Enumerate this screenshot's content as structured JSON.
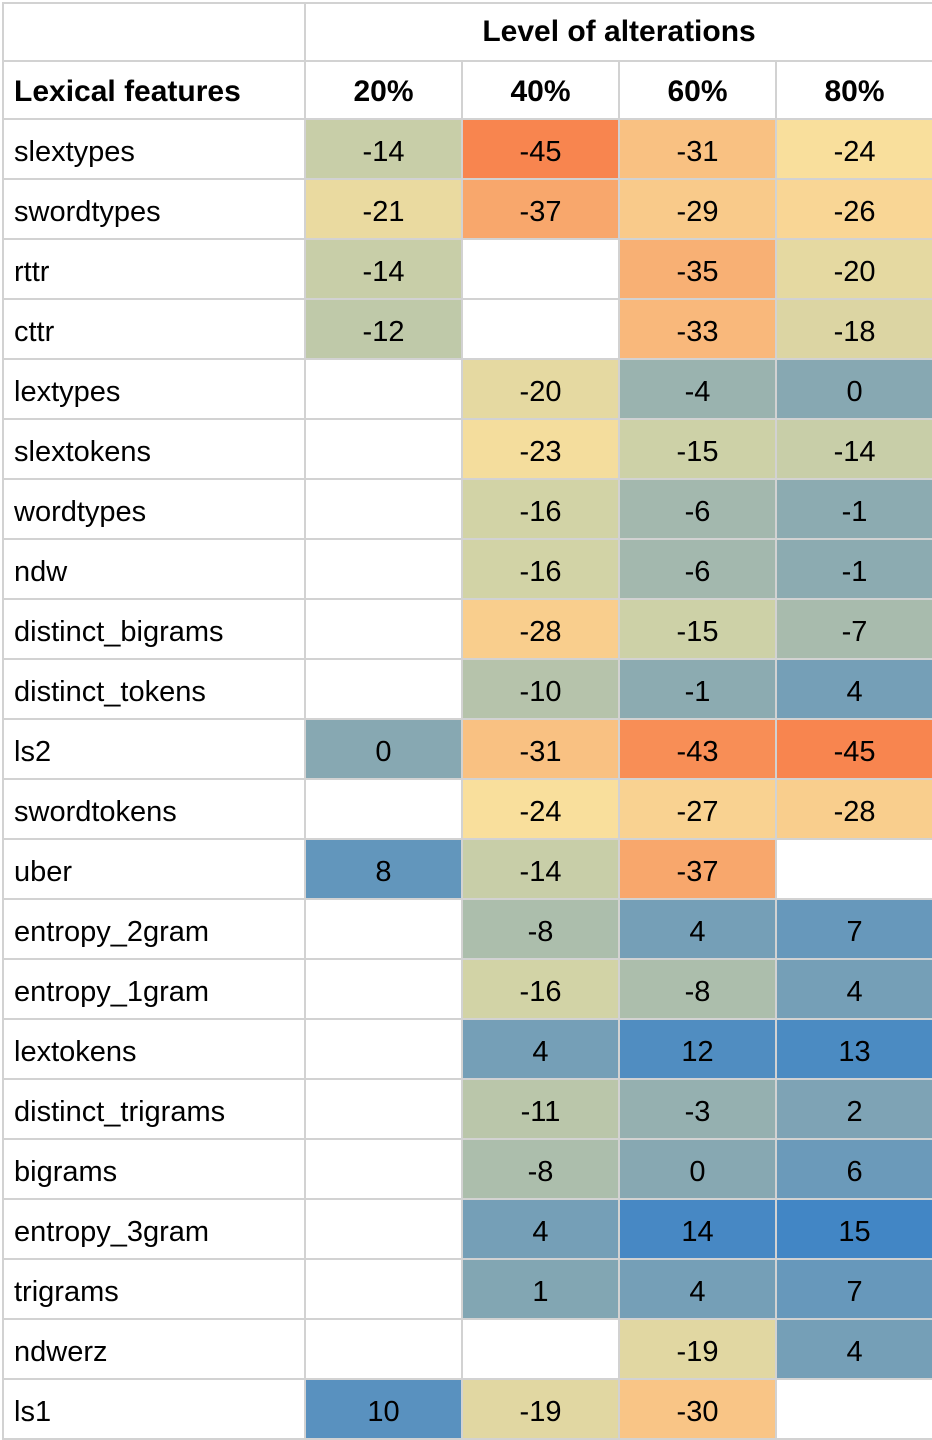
{
  "header": {
    "group_title": "Level of alterations",
    "row_label_header": "Lexical features",
    "columns": [
      "20%",
      "40%",
      "60%",
      "80%"
    ]
  },
  "colors": {
    "gridline": "#d2d2d2",
    "background": "#ffffff",
    "text": "#000000",
    "scale_min_orange": "#f8854f",
    "scale_mid_khaki": "#cdd1a7",
    "scale_max_blue": "#4286c5"
  },
  "chart_data": {
    "type": "heatmap",
    "title": "Level of alterations",
    "row_label_header": "Lexical features",
    "columns": [
      "20%",
      "40%",
      "60%",
      "80%"
    ],
    "value_range": [
      -45,
      15
    ],
    "legend_position": "none",
    "grid": true,
    "rows": [
      {
        "feature": "slextypes",
        "values": [
          -14,
          -45,
          -31,
          -24
        ],
        "colors": [
          "#c8cea8",
          "#f8854f",
          "#f9c182",
          "#f9df9c"
        ]
      },
      {
        "feature": "swordtypes",
        "values": [
          -21,
          -37,
          -29,
          -26
        ],
        "colors": [
          "#eadaa0",
          "#f8a76c",
          "#f9ca8a",
          "#f9d695"
        ]
      },
      {
        "feature": "rttr",
        "values": [
          -14,
          null,
          -35,
          -20
        ],
        "colors": [
          "#c8cea8",
          null,
          "#f8b074",
          "#e5d9a1"
        ]
      },
      {
        "feature": "cttr",
        "values": [
          -12,
          null,
          -33,
          -18
        ],
        "colors": [
          "#bfc9a9",
          null,
          "#f9b87b",
          "#dcd5a3"
        ]
      },
      {
        "feature": "lextypes",
        "values": [
          null,
          -20,
          -4,
          0
        ],
        "colors": [
          null,
          "#e5d9a1",
          "#9ab3af",
          "#87a8b2"
        ]
      },
      {
        "feature": "slextokens",
        "values": [
          null,
          -23,
          -15,
          -14
        ],
        "colors": [
          null,
          "#f4dd9d",
          "#cdd1a7",
          "#c8cea8"
        ]
      },
      {
        "feature": "wordtypes",
        "values": [
          null,
          -16,
          -6,
          -1
        ],
        "colors": [
          null,
          "#d2d3a6",
          "#a3b8ae",
          "#8cabb1"
        ]
      },
      {
        "feature": "ndw",
        "values": [
          null,
          -16,
          -6,
          -1
        ],
        "colors": [
          null,
          "#d2d3a6",
          "#a3b8ae",
          "#8cabb1"
        ]
      },
      {
        "feature": "distinct_bigrams",
        "values": [
          null,
          -28,
          -15,
          -7
        ],
        "colors": [
          null,
          "#f9ce8d",
          "#cdd1a7",
          "#a8bbad"
        ]
      },
      {
        "feature": "distinct_tokens",
        "values": [
          null,
          -10,
          -1,
          4
        ],
        "colors": [
          null,
          "#b6c3ab",
          "#8cabb1",
          "#759fb7"
        ]
      },
      {
        "feature": "ls2",
        "values": [
          0,
          -31,
          -43,
          -45
        ],
        "colors": [
          "#87a8b2",
          "#f9c182",
          "#f88e56",
          "#f8854f"
        ]
      },
      {
        "feature": "swordtokens",
        "values": [
          null,
          -24,
          -27,
          -28
        ],
        "colors": [
          null,
          "#f9df9c",
          "#f9d291",
          "#f9ce8d"
        ]
      },
      {
        "feature": "uber",
        "values": [
          8,
          -14,
          -37,
          null
        ],
        "colors": [
          "#6296bc",
          "#c8cea8",
          "#f8a76c",
          null
        ]
      },
      {
        "feature": "entropy_2gram",
        "values": [
          null,
          -8,
          4,
          7
        ],
        "colors": [
          null,
          "#acbeac",
          "#759fb7",
          "#6798bb"
        ]
      },
      {
        "feature": "entropy_1gram",
        "values": [
          null,
          -16,
          -8,
          4
        ],
        "colors": [
          null,
          "#d2d3a6",
          "#acbeac",
          "#759fb7"
        ]
      },
      {
        "feature": "lextokens",
        "values": [
          null,
          4,
          12,
          13
        ],
        "colors": [
          null,
          "#759fb7",
          "#508dc1",
          "#4b8bc2"
        ]
      },
      {
        "feature": "distinct_trigrams",
        "values": [
          null,
          -11,
          -3,
          2
        ],
        "colors": [
          null,
          "#bac6aa",
          "#95b0b0",
          "#7ea3b5"
        ]
      },
      {
        "feature": "bigrams",
        "values": [
          null,
          -8,
          0,
          6
        ],
        "colors": [
          null,
          "#acbeac",
          "#87a8b2",
          "#6b9aba"
        ]
      },
      {
        "feature": "entropy_3gram",
        "values": [
          null,
          4,
          14,
          15
        ],
        "colors": [
          null,
          "#759fb7",
          "#4788c4",
          "#4286c5"
        ]
      },
      {
        "feature": "trigrams",
        "values": [
          null,
          1,
          4,
          7
        ],
        "colors": [
          null,
          "#82a6b3",
          "#759fb7",
          "#6798bb"
        ]
      },
      {
        "feature": "ndwerz",
        "values": [
          null,
          null,
          -19,
          4
        ],
        "colors": [
          null,
          null,
          "#e1d7a2",
          "#759fb7"
        ]
      },
      {
        "feature": "ls1",
        "values": [
          10,
          -19,
          -30,
          null
        ],
        "colors": [
          "#5991bf",
          "#e1d7a2",
          "#f9c586",
          null
        ]
      }
    ]
  }
}
